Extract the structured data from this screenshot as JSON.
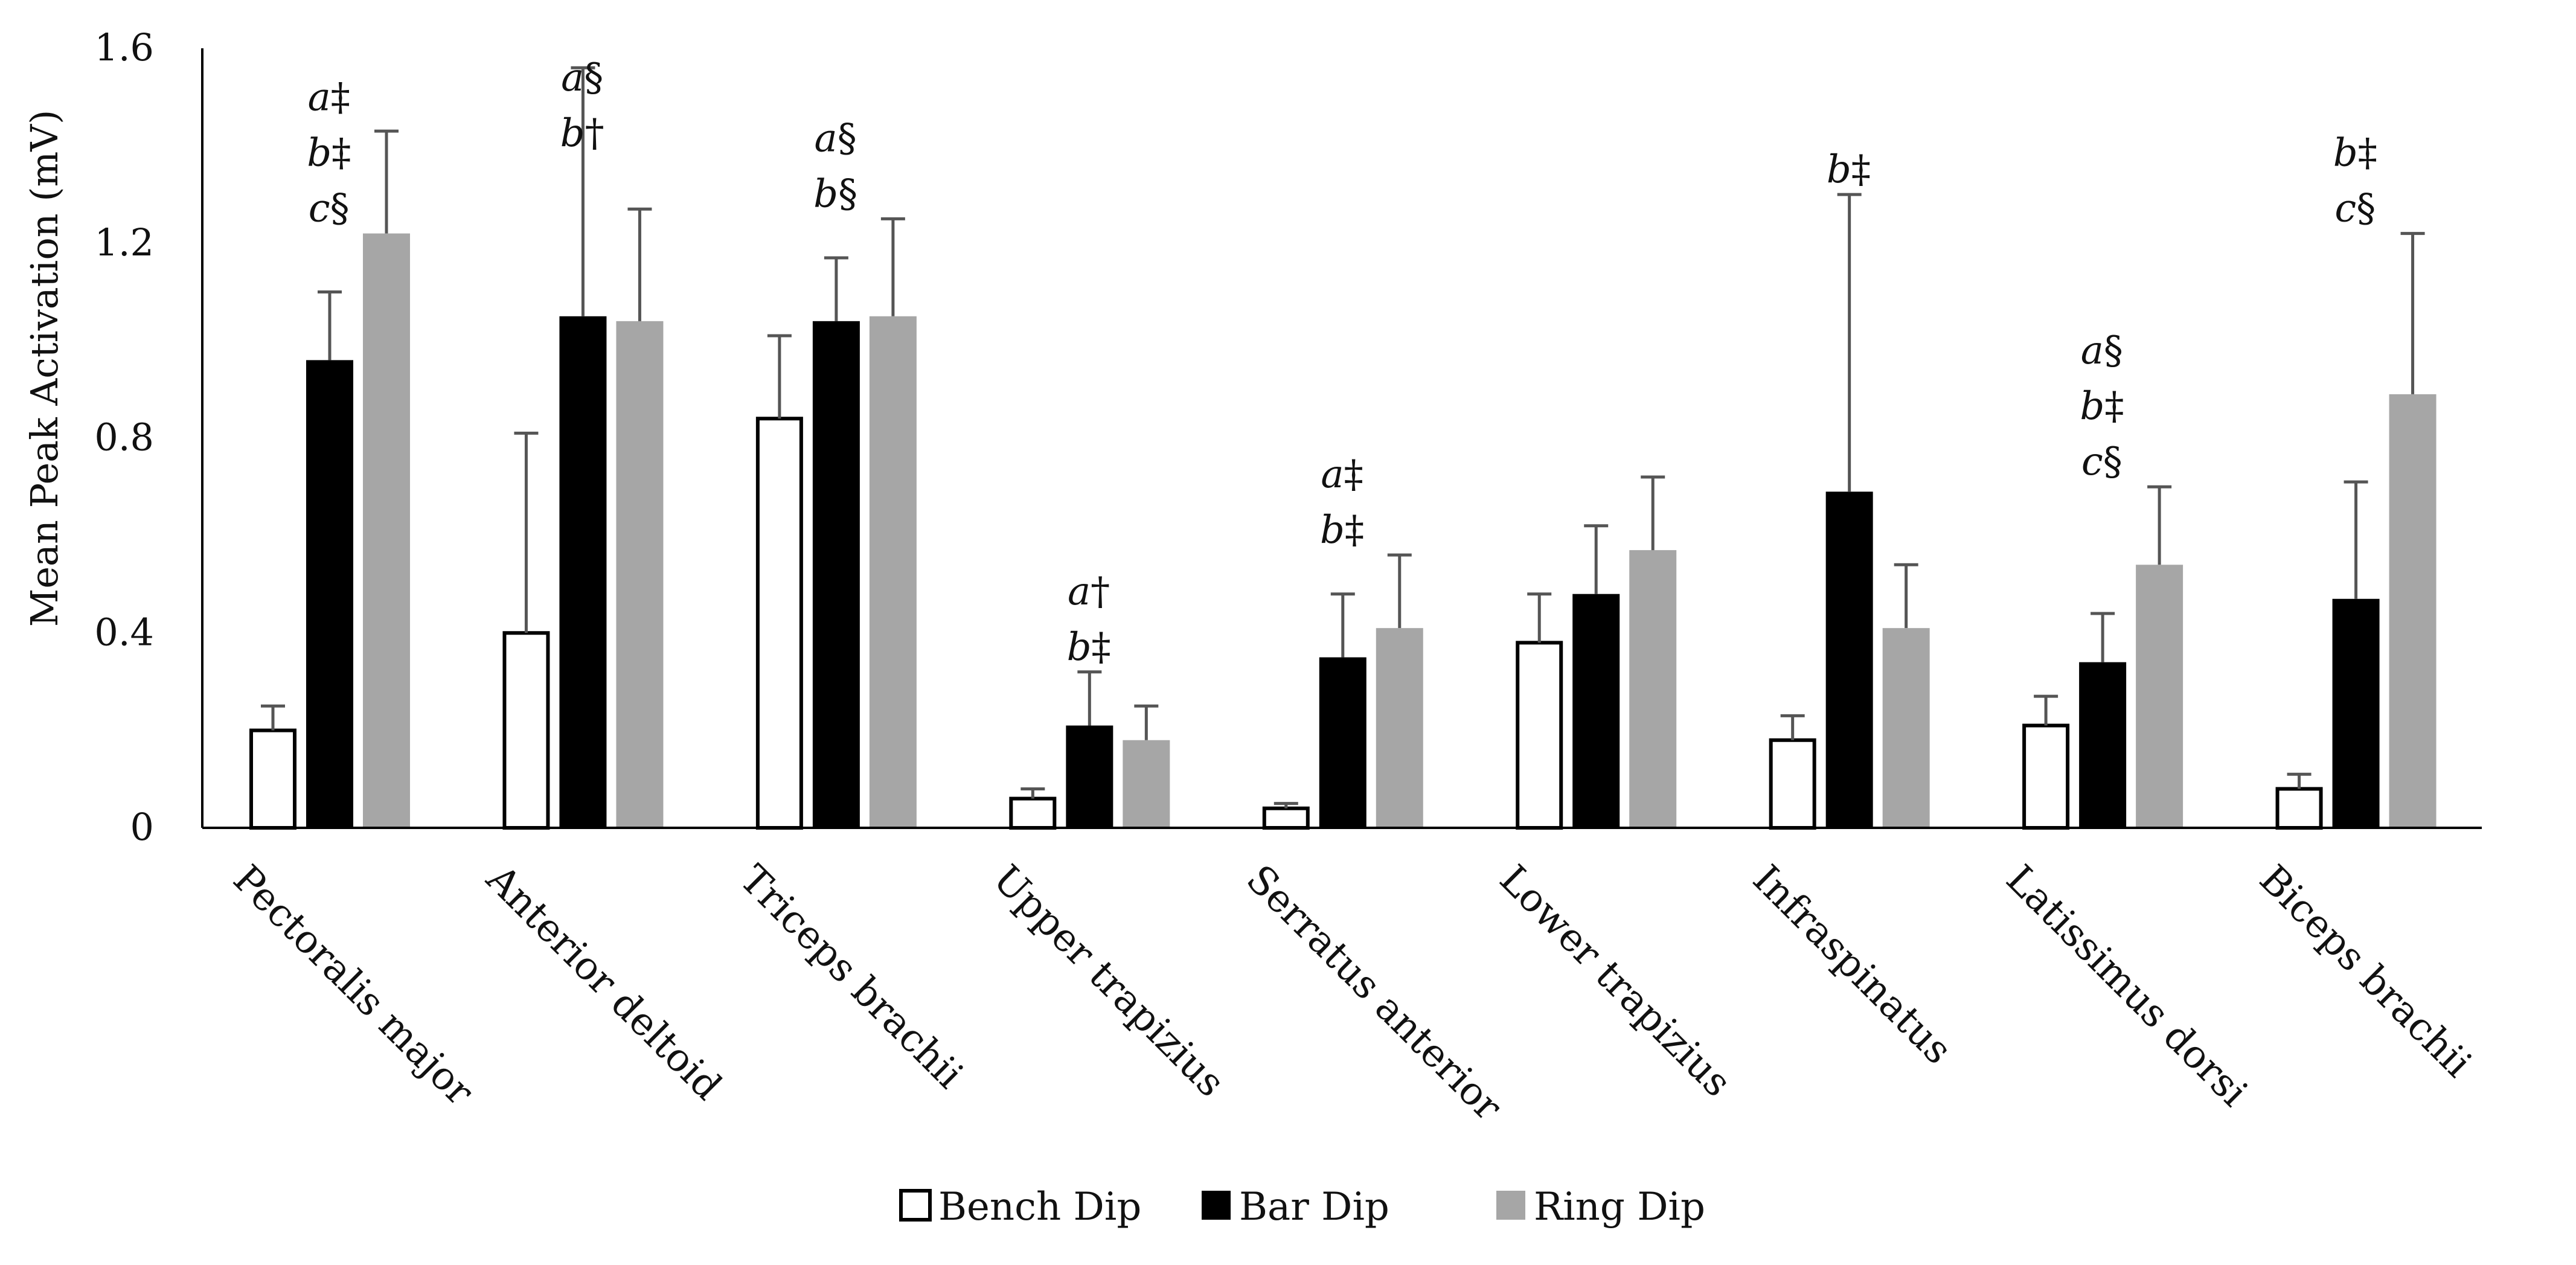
{
  "chart_data": {
    "type": "bar",
    "title": "",
    "xlabel": "",
    "ylabel": "Mean Peak Activation (mV)",
    "ylim": [
      0,
      1.6
    ],
    "yticks": [
      "0",
      "0.4",
      "0.8",
      "1.2",
      "1.6"
    ],
    "ytick_values": [
      0,
      0.4,
      0.8,
      1.2,
      1.6
    ],
    "grid": false,
    "legend_position": "bottom-center",
    "categories": [
      "Pectoralis major",
      "Anterior deltoid",
      "Triceps brachii",
      "Upper trapizius",
      "Serratus anterior",
      "Lower trapizius",
      "Infraspinatus",
      "Latissimus dorsi",
      "Biceps brachii"
    ],
    "series": [
      {
        "name": "Bench Dip",
        "color": "#ffffff",
        "stroke": "#000000",
        "values": [
          0.2,
          0.4,
          0.84,
          0.06,
          0.04,
          0.38,
          0.18,
          0.21,
          0.08
        ],
        "errors": [
          0.05,
          0.41,
          0.17,
          0.02,
          0.01,
          0.1,
          0.05,
          0.06,
          0.03
        ]
      },
      {
        "name": "Bar Dip",
        "color": "#000000",
        "stroke": "#000000",
        "values": [
          0.96,
          1.05,
          1.04,
          0.21,
          0.35,
          0.48,
          0.69,
          0.34,
          0.47
        ],
        "errors": [
          0.14,
          0.51,
          0.13,
          0.11,
          0.13,
          0.14,
          0.61,
          0.1,
          0.24
        ]
      },
      {
        "name": "Ring Dip",
        "color": "#a6a6a6",
        "stroke": "#a6a6a6",
        "values": [
          1.22,
          1.04,
          1.05,
          0.18,
          0.41,
          0.57,
          0.41,
          0.54,
          0.89
        ],
        "errors": [
          0.21,
          0.23,
          0.2,
          0.07,
          0.15,
          0.15,
          0.13,
          0.16,
          0.33
        ]
      }
    ],
    "annotations": [
      {
        "category": "Pectoralis major",
        "anchor_value": 1.22,
        "lines": [
          {
            "letter": "a",
            "symbol": "‡"
          },
          {
            "letter": "b",
            "symbol": "‡"
          },
          {
            "letter": "c",
            "symbol": "§"
          }
        ]
      },
      {
        "category": "Anterior deltoid",
        "anchor_value": 1.56,
        "lines": [
          {
            "letter": "a",
            "symbol": "§"
          },
          {
            "letter": "b",
            "symbol": "†"
          }
        ]
      },
      {
        "category": "Triceps brachii",
        "anchor_value": 1.25,
        "lines": [
          {
            "letter": "a",
            "symbol": "§"
          },
          {
            "letter": "b",
            "symbol": "§"
          }
        ]
      },
      {
        "category": "Upper trapizius",
        "anchor_value": 0.32,
        "lines": [
          {
            "letter": "a",
            "symbol": "†"
          },
          {
            "letter": "b",
            "symbol": "‡"
          }
        ]
      },
      {
        "category": "Serratus anterior",
        "anchor_value": 0.56,
        "lines": [
          {
            "letter": "a",
            "symbol": "‡"
          },
          {
            "letter": "b",
            "symbol": "‡"
          }
        ]
      },
      {
        "category": "Infraspinatus",
        "anchor_value": 1.3,
        "lines": [
          {
            "letter": "b",
            "symbol": "‡"
          }
        ]
      },
      {
        "category": "Latissimus dorsi",
        "anchor_value": 0.7,
        "lines": [
          {
            "letter": "a",
            "symbol": "§"
          },
          {
            "letter": "b",
            "symbol": "‡"
          },
          {
            "letter": "c",
            "symbol": "§"
          }
        ]
      },
      {
        "category": "Biceps brachii",
        "anchor_value": 1.22,
        "lines": [
          {
            "letter": "b",
            "symbol": "‡"
          },
          {
            "letter": "c",
            "symbol": "§"
          }
        ]
      }
    ]
  }
}
